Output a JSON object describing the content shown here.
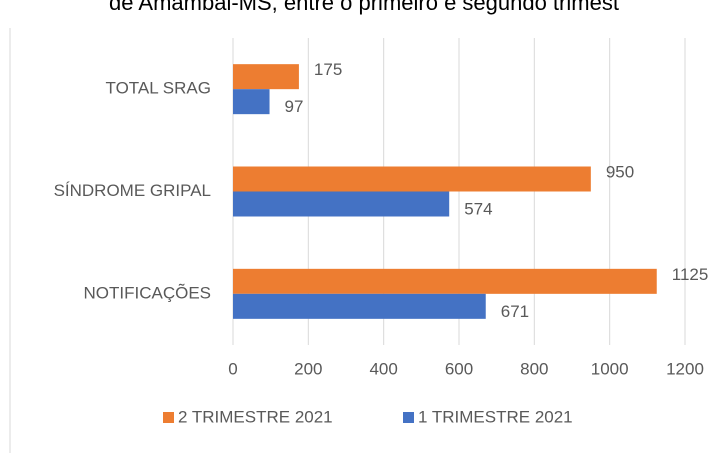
{
  "chart_data": {
    "type": "bar",
    "orientation": "horizontal",
    "title": "de Amambai-MS, entre o primeiro e segundo trimest",
    "categories": [
      "TOTAL SRAG",
      "SÍNDROME GRIPAL",
      "NOTIFICAÇÕES"
    ],
    "series": [
      {
        "name": "2 TRIMESTRE 2021",
        "color": "#ED7D31",
        "values": [
          175,
          950,
          1125
        ]
      },
      {
        "name": "1 TRIMESTRE 2021",
        "color": "#4472C4",
        "values": [
          97,
          574,
          671
        ]
      }
    ],
    "xlim": [
      0,
      1200
    ],
    "xticks": [
      0,
      200,
      400,
      600,
      800,
      1000,
      1200
    ],
    "grid": true,
    "legend": "bottom"
  }
}
